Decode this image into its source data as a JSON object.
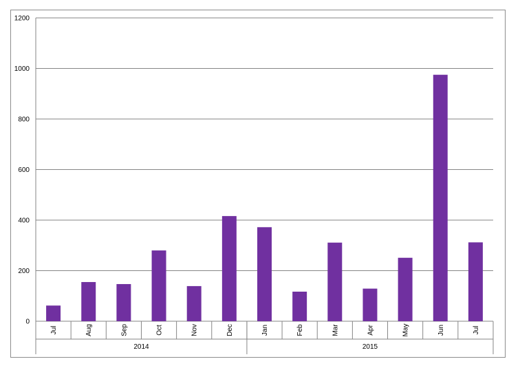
{
  "chart_data": {
    "type": "bar",
    "title": "",
    "xlabel": "",
    "ylabel": "",
    "ylim": [
      0,
      1200
    ],
    "yticks": [
      0,
      200,
      400,
      600,
      800,
      1000,
      1200
    ],
    "grid": true,
    "legend": "none",
    "bar_color": "#7030a0",
    "groups": [
      {
        "label": "2014",
        "categories": [
          "Jul",
          "Aug",
          "Sep",
          "Oct",
          "Nov",
          "Dec"
        ]
      },
      {
        "label": "2015",
        "categories": [
          "Jan",
          "Feb",
          "Mar",
          "Apr",
          "May",
          "Jun",
          "Jul"
        ]
      }
    ],
    "categories": [
      "Jul",
      "Aug",
      "Sep",
      "Oct",
      "Nov",
      "Dec",
      "Jan",
      "Feb",
      "Mar",
      "Apr",
      "May",
      "Jun",
      "Jul"
    ],
    "values": [
      62,
      155,
      147,
      280,
      139,
      416,
      372,
      117,
      311,
      129,
      251,
      975,
      312
    ]
  }
}
